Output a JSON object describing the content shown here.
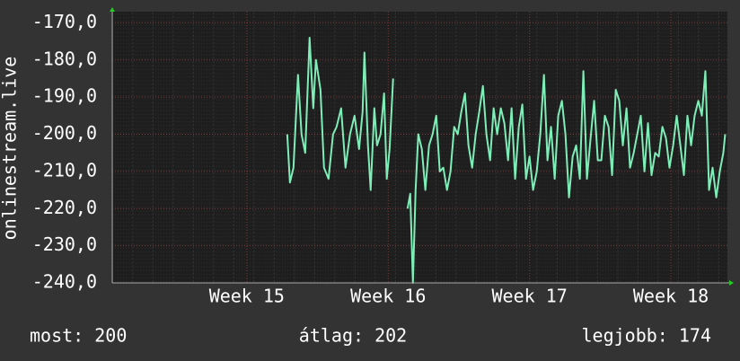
{
  "chart_data": {
    "type": "line",
    "ylabel": "onlinestream.live",
    "color": "#7fedb8",
    "xlim": [
      14.048,
      18.4
    ],
    "ylim": [
      -240,
      -167
    ],
    "xticks": [
      {
        "value": 15,
        "label": "Week 15"
      },
      {
        "value": 16,
        "label": "Week 16"
      },
      {
        "value": 17,
        "label": "Week 17"
      },
      {
        "value": 18,
        "label": "Week 18"
      }
    ],
    "yticks": [
      {
        "value": -170,
        "label": "-170,0"
      },
      {
        "value": -180,
        "label": "-180,0"
      },
      {
        "value": -190,
        "label": "-190,0"
      },
      {
        "value": -200,
        "label": "-200,0"
      },
      {
        "value": -210,
        "label": "-210,0"
      },
      {
        "value": -220,
        "label": "-220,0"
      },
      {
        "value": -230,
        "label": "-230,0"
      },
      {
        "value": -240,
        "label": "-240,0"
      }
    ],
    "grid": true,
    "x": [
      15.286,
      15.305,
      15.33,
      15.362,
      15.387,
      15.413,
      15.444,
      15.47,
      15.489,
      15.521,
      15.546,
      15.578,
      15.61,
      15.635,
      15.667,
      15.698,
      15.73,
      15.762,
      15.794,
      15.819,
      15.832,
      15.857,
      15.876,
      15.902,
      15.921,
      15.946,
      15.971,
      15.99,
      16.01,
      16.035,
      16.08,
      16.137,
      16.156,
      16.175,
      16.194,
      16.213,
      16.238,
      16.263,
      16.289,
      16.314,
      16.34,
      16.365,
      16.39,
      16.416,
      16.441,
      16.467,
      16.492,
      16.517,
      16.543,
      16.568,
      16.594,
      16.619,
      16.644,
      16.67,
      16.695,
      16.721,
      16.746,
      16.771,
      16.797,
      16.822,
      16.848,
      16.873,
      16.898,
      16.924,
      16.949,
      16.975,
      17.0,
      17.025,
      17.051,
      17.076,
      17.102,
      17.127,
      17.152,
      17.178,
      17.203,
      17.229,
      17.254,
      17.279,
      17.305,
      17.33,
      17.356,
      17.381,
      17.406,
      17.432,
      17.457,
      17.483,
      17.508,
      17.533,
      17.559,
      17.584,
      17.61,
      17.635,
      17.66,
      17.686,
      17.711,
      17.737,
      17.762,
      17.787,
      17.813,
      17.838,
      17.863,
      17.889,
      17.914,
      17.94,
      17.965,
      17.99,
      18.016,
      18.041,
      18.067,
      18.092,
      18.117,
      18.143,
      18.168,
      18.194,
      18.219,
      18.244,
      18.27,
      18.295,
      18.321,
      18.346,
      18.371,
      18.384
    ],
    "values": [
      -200,
      -213,
      -209,
      -184,
      -200,
      -205,
      -174,
      -193,
      -180,
      -188,
      -209,
      -212,
      -200,
      -198,
      -193,
      -209,
      -200,
      -195,
      -204,
      -194,
      -178,
      -203,
      -215,
      -193,
      -203,
      -200,
      -189,
      -212,
      -204,
      -185,
      null,
      -220,
      -216,
      -240,
      -215,
      -200,
      -204,
      -215,
      -203,
      -200,
      -195,
      -210,
      -209,
      -215,
      -210,
      -198,
      -200,
      -194,
      -189,
      -203,
      -209,
      -200,
      -194,
      -187,
      -200,
      -207,
      -193,
      -200,
      -193,
      -197,
      -207,
      -193,
      -212,
      -198,
      -192,
      -212,
      -206,
      -215,
      -210,
      -200,
      -184,
      -207,
      -198,
      -212,
      -195,
      -191,
      -200,
      -217,
      -206,
      -203,
      -212,
      -183,
      -212,
      -201,
      -191,
      -207,
      -207,
      -195,
      -198,
      -211,
      -188,
      -191,
      -203,
      -193,
      -209,
      -205,
      -200,
      -195,
      -210,
      -197,
      -211,
      -205,
      -206,
      -198,
      -201,
      -209,
      -203,
      -195,
      -203,
      -211,
      -195,
      -203,
      -195,
      -191,
      -195,
      -183,
      -215,
      -209,
      -217,
      -210,
      -205,
      -200
    ],
    "stats": [
      "most: 200",
      "átlag: 202",
      "legjobb: 174"
    ]
  }
}
